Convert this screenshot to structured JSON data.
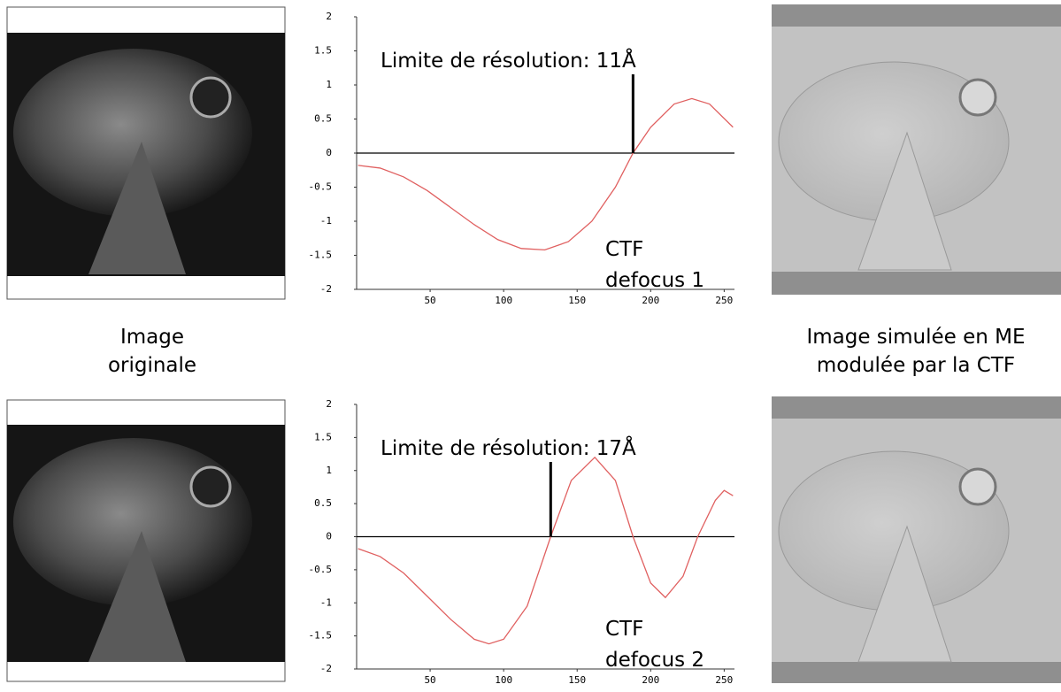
{
  "chart_data": [
    {
      "type": "line",
      "title": "Limite de résolution: 11Å",
      "annotation": [
        "CTF",
        "defocus 1"
      ],
      "x": [
        1,
        16,
        32,
        48,
        64,
        80,
        96,
        112,
        128,
        144,
        160,
        176,
        188,
        200,
        216,
        228,
        240,
        256
      ],
      "values": [
        -0.18,
        -0.22,
        -0.35,
        -0.55,
        -0.8,
        -1.05,
        -1.27,
        -1.4,
        -1.42,
        -1.3,
        -1.0,
        -0.5,
        0,
        0.38,
        0.72,
        0.8,
        0.72,
        0.38
      ],
      "color": "#e06060",
      "resolution_x": 188,
      "xlim": [
        0,
        257
      ],
      "ylim": [
        -2,
        2
      ],
      "xticks": [
        50,
        100,
        150,
        200,
        250
      ],
      "yticks": [
        -2,
        -1.5,
        -1,
        -0.5,
        0,
        0.5,
        1,
        1.5,
        2
      ]
    },
    {
      "type": "line",
      "title": "Limite de résolution: 17Å",
      "annotation": [
        "CTF",
        "defocus 2"
      ],
      "x": [
        1,
        16,
        32,
        48,
        64,
        80,
        90,
        100,
        116,
        132,
        146,
        162,
        176,
        188,
        200,
        210,
        222,
        232,
        244,
        250,
        256
      ],
      "values": [
        -0.18,
        -0.3,
        -0.55,
        -0.9,
        -1.25,
        -1.55,
        -1.62,
        -1.55,
        -1.05,
        0,
        0.85,
        1.2,
        0.85,
        0,
        -0.7,
        -0.92,
        -0.6,
        0,
        0.55,
        0.7,
        0.62
      ],
      "color": "#e06060",
      "resolution_x": 132,
      "xlim": [
        0,
        257
      ],
      "ylim": [
        -2,
        2
      ],
      "xticks": [
        50,
        100,
        150,
        200,
        250
      ],
      "yticks": [
        -2,
        -1.5,
        -1,
        -0.5,
        0,
        0.5,
        1,
        1.5,
        2
      ]
    }
  ],
  "captions": {
    "left": [
      "Image",
      "originale"
    ],
    "right": [
      "Image simulée en ME",
      "modulée par la CTF"
    ]
  }
}
